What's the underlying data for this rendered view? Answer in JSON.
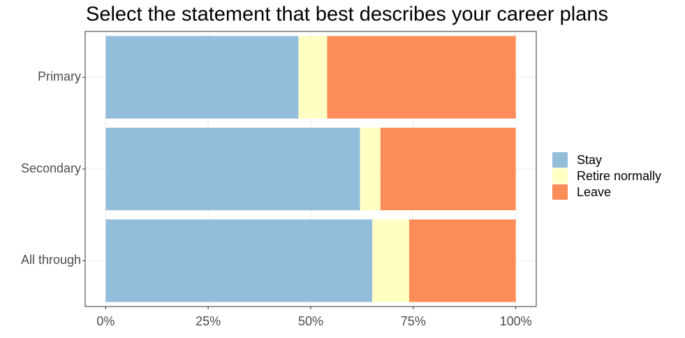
{
  "chart_data": {
    "type": "stacked_bar_horizontal",
    "title": "Select the statement that best describes your career plans",
    "categories": [
      "Primary",
      "Secondary",
      "All through"
    ],
    "series": [
      {
        "name": "Stay",
        "color": "#92bddb",
        "values": [
          47,
          62,
          65
        ]
      },
      {
        "name": "Retire normally",
        "color": "#ffffc4",
        "values": [
          7,
          5,
          9
        ]
      },
      {
        "name": "Leave",
        "color": "#fc8d59",
        "values": [
          46,
          33,
          26
        ]
      }
    ],
    "xlim": [
      -5,
      105
    ],
    "xticks": [
      {
        "value": 0,
        "label": "0%"
      },
      {
        "value": 25,
        "label": "25%"
      },
      {
        "value": 50,
        "label": "50%"
      },
      {
        "value": 75,
        "label": "75%"
      },
      {
        "value": 100,
        "label": "100%"
      }
    ],
    "grid": true,
    "legend_position": "right"
  }
}
